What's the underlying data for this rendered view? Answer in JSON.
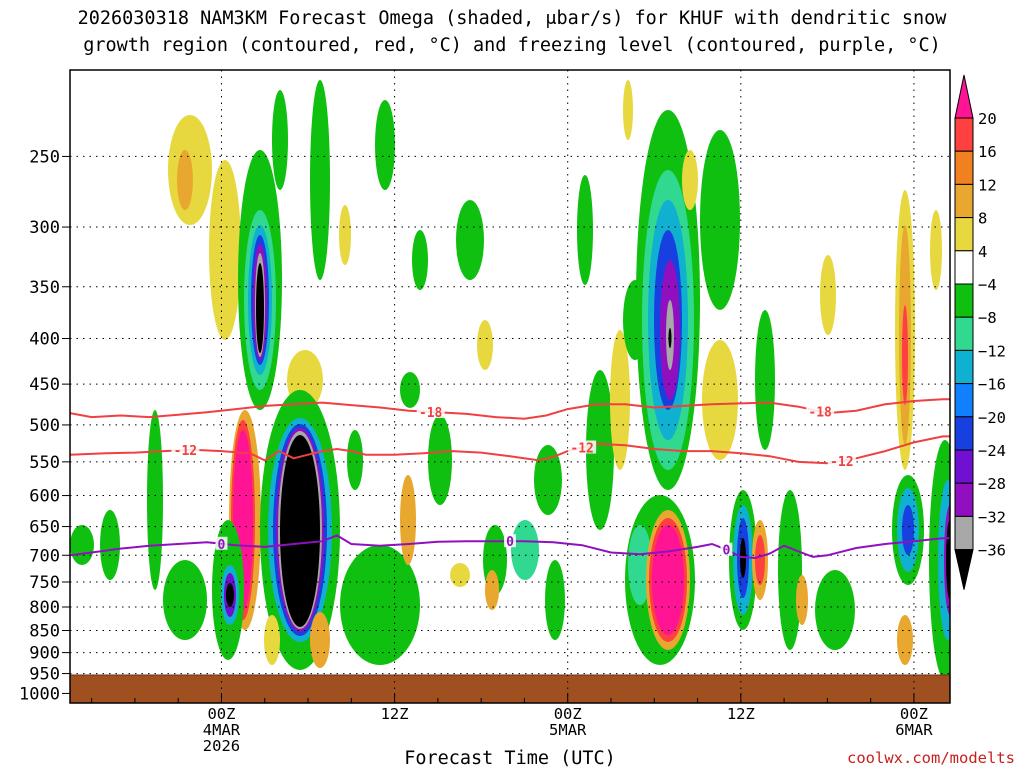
{
  "chart_data": {
    "type": "heatmap",
    "title_line1": "2026030318 NAM3KM Forecast Omega (shaded, μbar/s) for KHUF with dendritic snow",
    "title_line2": "growth region (contoured, red, °C) and freezing level (contoured, purple, °C)",
    "xlabel": "Forecast Time (UTC)",
    "credit": "coolwx.com/modelts",
    "x_range_hours": [
      -4.5,
      56.5
    ],
    "y_range_hpa": [
      200,
      1025
    ],
    "y_ticks": [
      250,
      300,
      350,
      400,
      450,
      500,
      550,
      600,
      650,
      700,
      750,
      800,
      850,
      900,
      950,
      1000
    ],
    "x_ticks": [
      {
        "hour": 6,
        "lines": [
          "00Z",
          "4MAR",
          "2026"
        ]
      },
      {
        "hour": 18,
        "lines": [
          "12Z"
        ]
      },
      {
        "hour": 30,
        "lines": [
          "00Z",
          "5MAR"
        ]
      },
      {
        "hour": 42,
        "lines": [
          "12Z"
        ]
      },
      {
        "hour": 54,
        "lines": [
          "00Z",
          "6MAR"
        ]
      }
    ],
    "colorbar": {
      "labels": [
        "20",
        "16",
        "12",
        "8",
        "4",
        "−4",
        "−8",
        "−12",
        "−16",
        "−20",
        "−24",
        "−28",
        "−32",
        "−36"
      ],
      "colors": [
        "#ff1493",
        "#ff4040",
        "#f08020",
        "#e8a830",
        "#e8d840",
        "#ffffff",
        "#10c010",
        "#30d890",
        "#10b0d0",
        "#1080ff",
        "#1840e0",
        "#7010d0",
        "#9010c0",
        "#a8a8a8",
        "#000000"
      ]
    },
    "contours": [
      {
        "name": "-18",
        "color": "#f04040",
        "points": [
          [
            -4.5,
            485
          ],
          [
            -3,
            490
          ],
          [
            -1,
            488
          ],
          [
            1,
            490
          ],
          [
            3,
            487
          ],
          [
            5,
            484
          ],
          [
            7,
            480
          ],
          [
            9,
            476
          ],
          [
            11,
            474
          ],
          [
            13,
            472
          ],
          [
            15,
            475
          ],
          [
            17,
            478
          ],
          [
            19,
            482
          ],
          [
            21,
            484
          ],
          [
            23,
            486
          ],
          [
            25,
            490
          ],
          [
            27,
            492
          ],
          [
            28.5,
            488
          ],
          [
            30,
            480
          ],
          [
            32,
            474
          ],
          [
            34,
            474
          ],
          [
            36,
            478
          ],
          [
            38,
            476
          ],
          [
            40,
            474
          ],
          [
            42,
            473
          ],
          [
            44,
            472
          ],
          [
            46,
            477
          ],
          [
            48,
            485
          ],
          [
            50,
            482
          ],
          [
            52,
            474
          ],
          [
            54,
            470
          ],
          [
            56,
            468
          ],
          [
            56.5,
            468
          ]
        ],
        "labels": [
          {
            "hour": 20.5,
            "text": "-18"
          },
          {
            "hour": 47.5,
            "text": "-18"
          }
        ]
      },
      {
        "name": "-12",
        "color": "#f04040",
        "points": [
          [
            -4.5,
            540
          ],
          [
            -2,
            538
          ],
          [
            0,
            537
          ],
          [
            2,
            535
          ],
          [
            4,
            533
          ],
          [
            6,
            535
          ],
          [
            8,
            538
          ],
          [
            9,
            548
          ],
          [
            10,
            535
          ],
          [
            11,
            545
          ],
          [
            12,
            540
          ],
          [
            13,
            535
          ],
          [
            14,
            532
          ],
          [
            15,
            535
          ],
          [
            16,
            540
          ],
          [
            18,
            540
          ],
          [
            20,
            538
          ],
          [
            22,
            535
          ],
          [
            24,
            537
          ],
          [
            26,
            542
          ],
          [
            28,
            548
          ],
          [
            29,
            543
          ],
          [
            30,
            535
          ],
          [
            32,
            525
          ],
          [
            34,
            527
          ],
          [
            36,
            532
          ],
          [
            38,
            535
          ],
          [
            40,
            535
          ],
          [
            42,
            538
          ],
          [
            44,
            542
          ],
          [
            46,
            550
          ],
          [
            48,
            552
          ],
          [
            50,
            545
          ],
          [
            52,
            535
          ],
          [
            54,
            523
          ],
          [
            56,
            515
          ],
          [
            56.5,
            515
          ]
        ],
        "labels": [
          {
            "hour": 3.5,
            "text": "-12"
          },
          {
            "hour": 31,
            "text": "-12"
          },
          {
            "hour": 49,
            "text": "-12"
          }
        ]
      },
      {
        "name": "0",
        "color": "#9010c0",
        "points": [
          [
            -4.5,
            700
          ],
          [
            -3,
            695
          ],
          [
            -1,
            688
          ],
          [
            1,
            683
          ],
          [
            3,
            680
          ],
          [
            5,
            677
          ],
          [
            7,
            682
          ],
          [
            9,
            685
          ],
          [
            11,
            680
          ],
          [
            13,
            675
          ],
          [
            14,
            665
          ],
          [
            15,
            680
          ],
          [
            17,
            683
          ],
          [
            19,
            680
          ],
          [
            21,
            676
          ],
          [
            23,
            675
          ],
          [
            25,
            675
          ],
          [
            27,
            675
          ],
          [
            29,
            677
          ],
          [
            31,
            682
          ],
          [
            33,
            695
          ],
          [
            35,
            698
          ],
          [
            37,
            693
          ],
          [
            39,
            685
          ],
          [
            40,
            680
          ],
          [
            41,
            690
          ],
          [
            42,
            703
          ],
          [
            43,
            705
          ],
          [
            44,
            697
          ],
          [
            45,
            683
          ],
          [
            46,
            693
          ],
          [
            47,
            703
          ],
          [
            48,
            700
          ],
          [
            50,
            687
          ],
          [
            52,
            680
          ],
          [
            54,
            675
          ],
          [
            56,
            670
          ],
          [
            56.5,
            670
          ]
        ],
        "labels": [
          {
            "hour": 6,
            "text": "0"
          },
          {
            "hour": 26,
            "text": "0"
          },
          {
            "hour": 41,
            "text": "0"
          }
        ]
      }
    ]
  }
}
